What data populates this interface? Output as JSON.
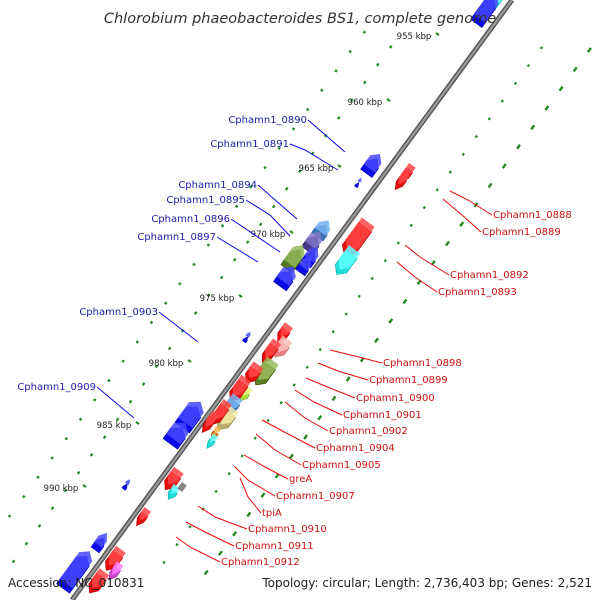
{
  "title": "Chlorobium phaeobacteroides BS1, complete genome",
  "footer": {
    "accession": "Accession: NC_010831",
    "summary": "Topology: circular; Length: 2,736,403 bp; Genes: 2,521"
  },
  "ruler": [
    {
      "label": "955 kbp",
      "pos": 955
    },
    {
      "label": "960 kbp",
      "pos": 960
    },
    {
      "label": "965 kbp",
      "pos": 965
    },
    {
      "label": "970 kbp",
      "pos": 970
    },
    {
      "label": "975 kbp",
      "pos": 975
    },
    {
      "label": "980 kbp",
      "pos": 980
    },
    {
      "label": "985 kbp",
      "pos": 985
    },
    {
      "label": "990 kbp",
      "pos": 990
    }
  ],
  "genes_plus": [
    {
      "label": "Cphamn1_0890",
      "color": "#0a0ae6"
    },
    {
      "label": "Cphamn1_0891",
      "color": "#0a0ae6"
    },
    {
      "label": "Cphamn1_0894",
      "color": "#3b78b8"
    },
    {
      "label": "Cphamn1_0895",
      "color": "#453a8a"
    },
    {
      "label": "Cphamn1_0896",
      "color": "#0a0ae6"
    },
    {
      "label": "Cphamn1_0897",
      "color": "#557a1e"
    },
    {
      "label": "Cphamn1_0903",
      "color": "#0a0ae6"
    },
    {
      "label": "Cphamn1_0909",
      "color": "#0a0ae6"
    }
  ],
  "genes_minus": [
    {
      "label": "Cphamn1_0888",
      "color": "#e60a0a"
    },
    {
      "label": "Cphamn1_0889",
      "color": "#e60a0a"
    },
    {
      "label": "Cphamn1_0892",
      "color": "#e60a0a"
    },
    {
      "label": "Cphamn1_0893",
      "color": "#22dddd"
    },
    {
      "label": "Cphamn1_0898",
      "color": "#e88080"
    },
    {
      "label": "Cphamn1_0899",
      "color": "#5e7f22"
    },
    {
      "label": "Cphamn1_0900",
      "color": "#e60a0a"
    },
    {
      "label": "Cphamn1_0901",
      "color": "#a8e040"
    },
    {
      "label": "Cphamn1_0902",
      "color": "#b8ae6a"
    },
    {
      "label": "Cphamn1_0904",
      "color": "#3b78b8"
    },
    {
      "label": "Cphamn1_0905",
      "color": "#e60a0a"
    },
    {
      "label": "greA",
      "color": "#ee7711"
    },
    {
      "label": "Cphamn1_0907",
      "color": "#22dddd"
    },
    {
      "label": "tpiA",
      "color": "#e60a0a"
    },
    {
      "label": "Cphamn1_0910",
      "color": "#e60a0a"
    },
    {
      "label": "Cphamn1_0911",
      "color": "#22dddd"
    },
    {
      "label": "Cphamn1_0912",
      "color": "#e60a0a"
    }
  ],
  "colors": {
    "plus": "#0a0ae6",
    "minus": "#e60a0a",
    "backbone": "#888888",
    "tick_green": "#228822",
    "label_plus": "#1a1aa6",
    "label_minus": "#cc1111"
  }
}
